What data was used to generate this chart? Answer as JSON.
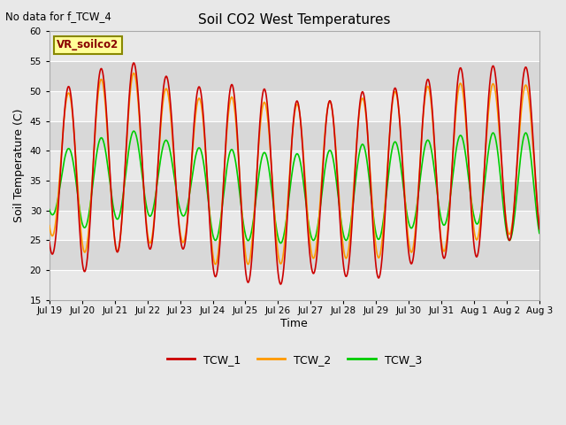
{
  "title": "Soil CO2 West Temperatures",
  "no_data_text": "No data for f_TCW_4",
  "ylabel": "Soil Temperature (C)",
  "xlabel": "Time",
  "ylim": [
    15,
    60
  ],
  "yticks": [
    15,
    20,
    25,
    30,
    35,
    40,
    45,
    50,
    55,
    60
  ],
  "xtick_labels": [
    "Jul 19",
    "Jul 20",
    "Jul 21",
    "Jul 22",
    "Jul 23",
    "Jul 24",
    "Jul 25",
    "Jul 26",
    "Jul 27",
    "Jul 28",
    "Jul 29",
    "Jul 30",
    "Jul 31",
    "Aug 1",
    "Aug 2",
    "Aug 3"
  ],
  "legend_box_label": "VR_soilco2",
  "colors": {
    "TCW_1": "#cc0000",
    "TCW_2": "#ff9900",
    "TCW_3": "#00cc00"
  },
  "legend_labels": [
    "TCW_1",
    "TCW_2",
    "TCW_3"
  ],
  "tcw1_peaks": [
    49,
    52,
    55,
    54.5,
    51,
    50.5,
    51.5,
    49.5,
    47.5,
    49,
    50.5,
    50.5,
    53,
    54.5,
    54
  ],
  "tcw1_troughs": [
    23,
    19.5,
    23,
    23.5,
    24,
    19,
    18,
    17.5,
    19.5,
    19,
    18.5,
    21,
    22,
    22,
    25
  ],
  "tcw2_peaks": [
    48.5,
    50.5,
    53,
    53,
    48.5,
    49,
    49,
    47.5,
    48,
    48.5,
    49,
    50.5,
    51,
    51.5,
    51
  ],
  "tcw2_troughs": [
    26,
    23,
    23,
    24.5,
    25,
    21,
    21,
    21,
    22,
    22,
    22,
    23,
    23,
    25,
    26
  ],
  "tcw3_peaks": [
    39.5,
    41,
    43,
    43.5,
    40.5,
    40.5,
    40,
    39.5,
    39.5,
    40.5,
    41.5,
    41.5,
    42,
    43,
    43
  ],
  "tcw3_troughs": [
    29.5,
    27,
    28.5,
    29,
    29.5,
    25,
    25,
    24.5,
    25,
    25,
    25,
    27,
    27.5,
    28,
    25
  ],
  "band_colors": [
    "#e8e8e8",
    "#d8d8d8"
  ],
  "grid_color": "#c8c8c8",
  "figsize": [
    6.4,
    4.8
  ],
  "dpi": 100
}
